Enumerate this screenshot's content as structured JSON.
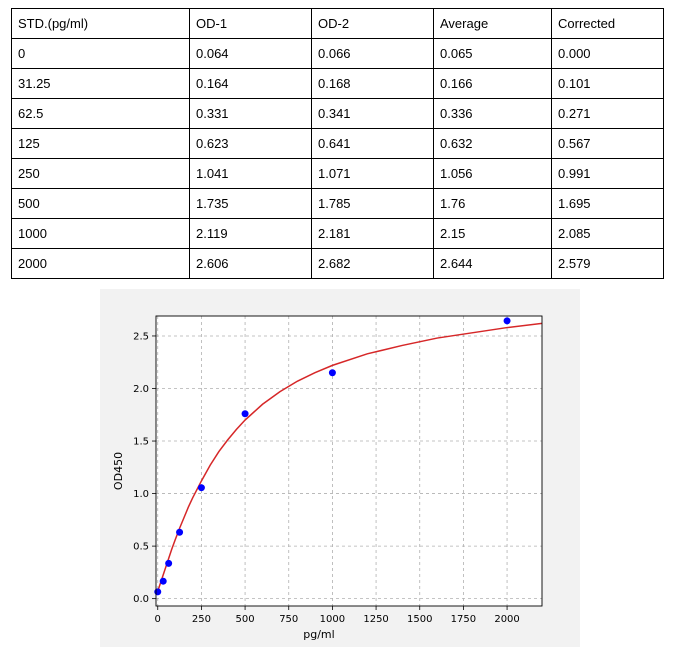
{
  "table": {
    "headers": [
      "STD.(pg/ml)",
      "OD-1",
      "OD-2",
      "Average",
      "Corrected"
    ],
    "rows": [
      [
        "0",
        "0.064",
        "0.066",
        "0.065",
        "0.000"
      ],
      [
        "31.25",
        "0.164",
        "0.168",
        "0.166",
        "0.101"
      ],
      [
        "62.5",
        "0.331",
        "0.341",
        "0.336",
        "0.271"
      ],
      [
        "125",
        "0.623",
        "0.641",
        "0.632",
        "0.567"
      ],
      [
        "250",
        "1.041",
        "1.071",
        "1.056",
        "0.991"
      ],
      [
        "500",
        "1.735",
        "1.785",
        "1.76",
        "1.695"
      ],
      [
        "1000",
        "2.119",
        "2.181",
        "2.15",
        "2.085"
      ],
      [
        "2000",
        "2.606",
        "2.682",
        "2.644",
        "2.579"
      ]
    ]
  },
  "chart_data": {
    "type": "scatter",
    "title": "",
    "xlabel": "pg/ml",
    "ylabel": "OD450",
    "xlim": [
      -10,
      2200
    ],
    "ylim": [
      -0.07,
      2.69
    ],
    "x_ticks": [
      0,
      250,
      500,
      750,
      1000,
      1250,
      1500,
      1750,
      2000
    ],
    "y_ticks": [
      0.0,
      0.5,
      1.0,
      1.5,
      2.0,
      2.5
    ],
    "x_tick_labels": [
      "0",
      "250",
      "500",
      "750",
      "1000",
      "1250",
      "1500",
      "1750",
      "2000"
    ],
    "y_tick_labels": [
      "0.0",
      "0.5",
      "1.0",
      "1.5",
      "2.0",
      "2.5"
    ],
    "grid": true,
    "points": {
      "x": [
        0,
        31.25,
        62.5,
        125,
        250,
        500,
        1000,
        2000
      ],
      "y": [
        0.065,
        0.166,
        0.336,
        0.632,
        1.056,
        1.76,
        2.15,
        2.644
      ]
    },
    "fit_curve": {
      "x": [
        0,
        20,
        40,
        60,
        80,
        100,
        125,
        150,
        175,
        200,
        250,
        300,
        350,
        400,
        450,
        500,
        600,
        700,
        800,
        900,
        1000,
        1200,
        1400,
        1600,
        1800,
        2000,
        2200
      ],
      "y": [
        0.07,
        0.17,
        0.27,
        0.37,
        0.47,
        0.56,
        0.67,
        0.77,
        0.87,
        0.96,
        1.12,
        1.27,
        1.4,
        1.51,
        1.61,
        1.7,
        1.85,
        1.97,
        2.07,
        2.15,
        2.22,
        2.33,
        2.41,
        2.48,
        2.53,
        2.58,
        2.62
      ]
    },
    "colors": {
      "points": "#0000ff",
      "curve": "#d62728",
      "grid": "#b0b0b0"
    }
  }
}
